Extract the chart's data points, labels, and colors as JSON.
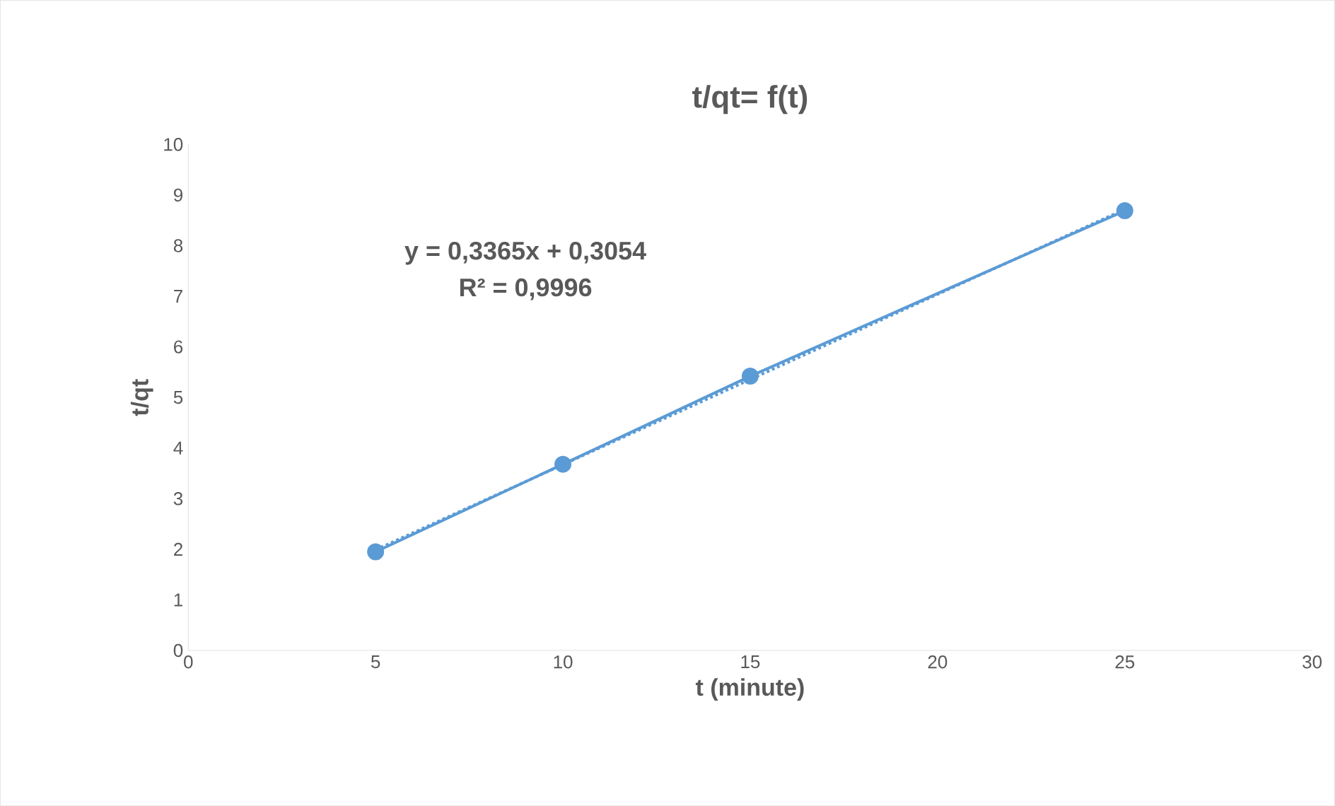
{
  "chart_data": {
    "type": "line",
    "title": "t/qt= f(t)",
    "xlabel": "t (minute)",
    "ylabel": "t/qt",
    "xlim": [
      0,
      30
    ],
    "xticks": [
      0,
      5,
      10,
      15,
      20,
      25,
      30
    ],
    "ylim": [
      0,
      10
    ],
    "yticks": [
      0,
      1,
      2,
      3,
      4,
      5,
      6,
      7,
      8,
      9,
      10
    ],
    "grid": false,
    "series": [
      {
        "color": "#5b9bd5",
        "x": [
          5,
          10,
          15,
          25
        ],
        "values": [
          1.95,
          3.68,
          5.42,
          8.69
        ],
        "marker": "circle",
        "line_style": "solid"
      },
      {
        "color": "#5b9bd5",
        "x": [
          5,
          25
        ],
        "values": [
          1.99,
          8.72
        ],
        "marker": "none",
        "line_style": "dotted"
      }
    ],
    "annotations": [
      "y = 0,3365x + 0,3054",
      "R² = 0,9996"
    ]
  }
}
